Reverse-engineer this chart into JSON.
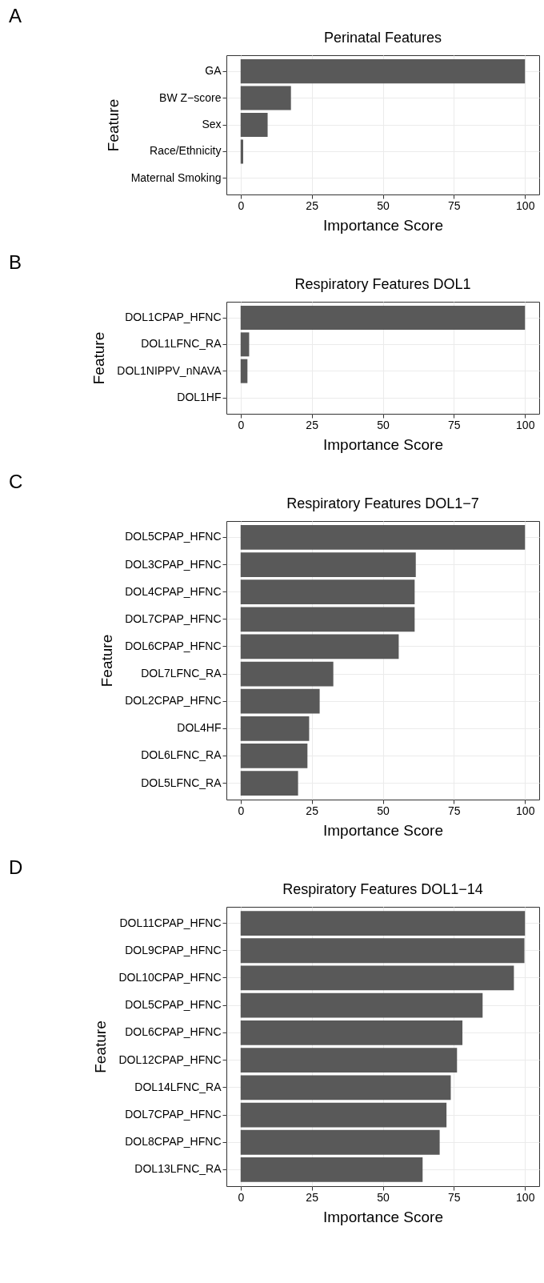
{
  "chart_data": [
    {
      "type": "bar",
      "orientation": "horizontal",
      "title": "Perinatal Features",
      "xlabel": "Importance Score",
      "ylabel": "Feature",
      "annotations": [
        "A"
      ],
      "categories": [
        "GA",
        "BW Z−score",
        "Sex",
        "Race/Ethnicity",
        "Maternal Smoking"
      ],
      "values": [
        100,
        17.7,
        9.5,
        0.9,
        0
      ],
      "color": "#595959",
      "xlim": [
        -5,
        105
      ],
      "xticks": [
        0,
        25,
        50,
        75,
        100
      ],
      "grid": true
    },
    {
      "type": "bar",
      "orientation": "horizontal",
      "title": "Respiratory Features DOL1",
      "xlabel": "Importance Score",
      "ylabel": "Feature",
      "annotations": [
        "B"
      ],
      "categories": [
        "DOL1CPAP_HFNC",
        "DOL1LFNC_RA",
        "DOL1NIPPV_nNAVA",
        "DOL1HF"
      ],
      "values": [
        100,
        3.0,
        2.4,
        0
      ],
      "color": "#595959",
      "xlim": [
        -5,
        105
      ],
      "xticks": [
        0,
        25,
        50,
        75,
        100
      ],
      "grid": true
    },
    {
      "type": "bar",
      "orientation": "horizontal",
      "title": "Respiratory Features DOL1−7",
      "xlabel": "Importance Score",
      "ylabel": "Feature",
      "annotations": [
        "C"
      ],
      "categories": [
        "DOL5CPAP_HFNC",
        "DOL3CPAP_HFNC",
        "DOL4CPAP_HFNC",
        "DOL7CPAP_HFNC",
        "DOL6CPAP_HFNC",
        "DOL7LFNC_RA",
        "DOL2CPAP_HFNC",
        "DOL4HF",
        "DOL6LFNC_RA",
        "DOL5LFNC_RA"
      ],
      "values": [
        100,
        61.6,
        61.2,
        61.2,
        55.6,
        32.6,
        27.8,
        24.1,
        23.5,
        20.2
      ],
      "color": "#595959",
      "xlim": [
        -5,
        105
      ],
      "xticks": [
        0,
        25,
        50,
        75,
        100
      ],
      "grid": true
    },
    {
      "type": "bar",
      "orientation": "horizontal",
      "title": "Respiratory Features DOL1−14",
      "xlabel": "Importance Score",
      "ylabel": "Feature",
      "annotations": [
        "D"
      ],
      "categories": [
        "DOL11CPAP_HFNC",
        "DOL9CPAP_HFNC",
        "DOL10CPAP_HFNC",
        "DOL5CPAP_HFNC",
        "DOL6CPAP_HFNC",
        "DOL12CPAP_HFNC",
        "DOL14LFNC_RA",
        "DOL7CPAP_HFNC",
        "DOL8CPAP_HFNC",
        "DOL13LFNC_RA"
      ],
      "values": [
        100,
        99.8,
        96.1,
        85.1,
        78.0,
        76.1,
        73.9,
        72.4,
        70.0,
        64.0
      ],
      "color": "#595959",
      "xlim": [
        -5,
        105
      ],
      "xticks": [
        0,
        25,
        50,
        75,
        100
      ],
      "grid": true
    }
  ]
}
